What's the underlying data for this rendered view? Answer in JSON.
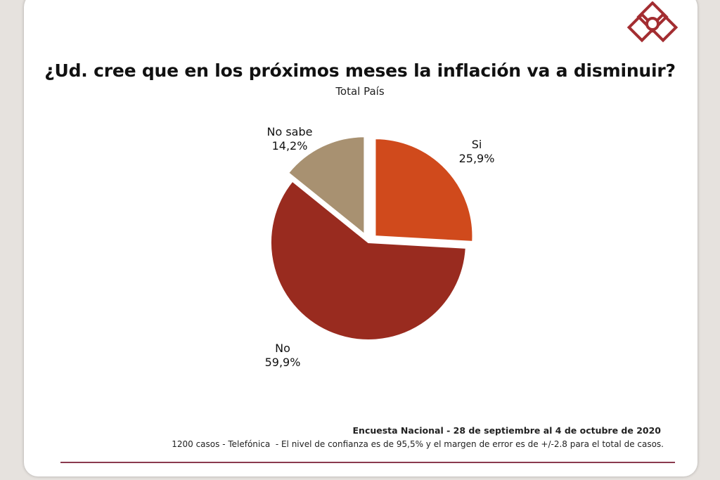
{
  "header": {
    "title": "¿Ud. cree que en los próximos meses la inflación va a disminuir?",
    "subtitle": "Total País"
  },
  "logo": {
    "icon": "diamond-logo-icon",
    "color": "#a32d31"
  },
  "chart_data": {
    "type": "pie",
    "title": "¿Ud. cree que en los próximos meses la inflación va a disminuir?",
    "subtitle": "Total País",
    "slices": [
      {
        "label": "Si",
        "value": 25.9,
        "value_label": "25,9%",
        "color": "#d04a1c",
        "exploded": true
      },
      {
        "label": "No",
        "value": 59.9,
        "value_label": "59,9%",
        "color": "#992b1f",
        "exploded": false
      },
      {
        "label": "No sabe",
        "value": 14.2,
        "value_label": "14,2%",
        "color": "#a89171",
        "exploded": true
      }
    ]
  },
  "footer": {
    "line1": "Encuesta Nacional - 28 de septiembre al 4 de octubre de 2020",
    "line2": "1200 casos - Telefónica  - El nivel de confianza es de 95,5% y el margen de error es de +/-2.8 para el total de casos."
  }
}
